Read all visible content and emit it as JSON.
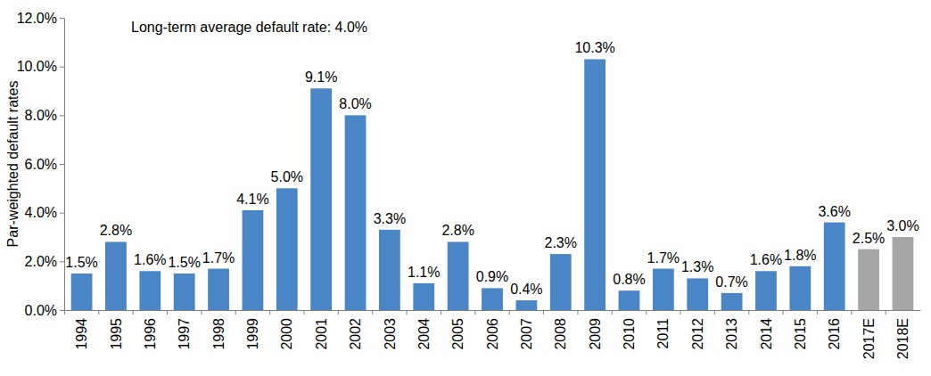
{
  "chart_data": {
    "type": "bar",
    "y_label": "Par-weighted default rates",
    "annotations": [
      "Long-term average default rate: 4.0%"
    ],
    "categories": [
      "1994",
      "1995",
      "1996",
      "1997",
      "1998",
      "1999",
      "2000",
      "2001",
      "2002",
      "2003",
      "2004",
      "2005",
      "2006",
      "2007",
      "2008",
      "2009",
      "2010",
      "2011",
      "2012",
      "2013",
      "2014",
      "2015",
      "2016",
      "2017E",
      "2018E"
    ],
    "values": [
      1.5,
      2.8,
      1.6,
      1.5,
      1.7,
      4.1,
      5.0,
      9.1,
      8.0,
      3.3,
      1.1,
      2.8,
      0.9,
      0.4,
      2.3,
      10.3,
      0.8,
      1.7,
      1.3,
      0.7,
      1.6,
      1.8,
      3.6,
      2.5,
      3.0
    ],
    "value_labels": [
      "1.5%",
      "2.8%",
      "1.6%",
      "1.5%",
      "1.7%",
      "4.1%",
      "5.0%",
      "9.1%",
      "8.0%",
      "3.3%",
      "1.1%",
      "2.8%",
      "0.9%",
      "0.4%",
      "2.3%",
      "10.3%",
      "0.8%",
      "1.7%",
      "1.3%",
      "0.7%",
      "1.6%",
      "1.8%",
      "3.6%",
      "2.5%",
      "3.0%"
    ],
    "colors": [
      "#4a86c5",
      "#4a86c5",
      "#4a86c5",
      "#4a86c5",
      "#4a86c5",
      "#4a86c5",
      "#4a86c5",
      "#4a86c5",
      "#4a86c5",
      "#4a86c5",
      "#4a86c5",
      "#4a86c5",
      "#4a86c5",
      "#4a86c5",
      "#4a86c5",
      "#4a86c5",
      "#4a86c5",
      "#4a86c5",
      "#4a86c5",
      "#4a86c5",
      "#4a86c5",
      "#4a86c5",
      "#4a86c5",
      "#a6a6a6",
      "#a6a6a6"
    ],
    "data_labels": true,
    "grid": false,
    "ylim": [
      0,
      12
    ],
    "yticks": [
      {
        "value": 0,
        "label": "0.0%"
      },
      {
        "value": 2,
        "label": "2.0%"
      },
      {
        "value": 4,
        "label": "4.0%"
      },
      {
        "value": 6,
        "label": "6.0%"
      },
      {
        "value": 8,
        "label": "8.0%"
      },
      {
        "value": 10,
        "label": "10.0%"
      },
      {
        "value": 12,
        "label": "12.0%"
      }
    ]
  }
}
